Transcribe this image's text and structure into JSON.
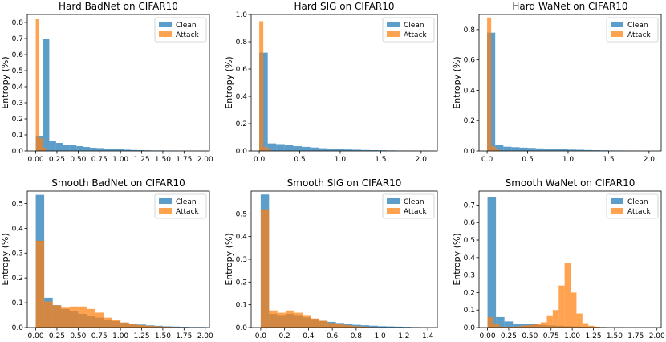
{
  "colors": {
    "clean": "#1f77b4",
    "attack": "#ff7f0e",
    "overlap": "#9a6a47"
  },
  "chart_data": [
    {
      "type": "histogram",
      "title": "Hard BadNet on CIFAR10",
      "xlabel": "",
      "ylabel": "Entropy (%)",
      "xlim": [
        -0.1,
        2.05
      ],
      "ylim": [
        0,
        0.85
      ],
      "xticks": [
        0,
        0.25,
        0.5,
        0.75,
        1.0,
        1.25,
        1.5,
        1.75,
        2.0
      ],
      "xtick_labels": [
        "0.00",
        "0.25",
        "0.50",
        "0.75",
        "1.00",
        "1.25",
        "1.50",
        "1.75",
        "2.00"
      ],
      "yticks": [
        0,
        0.1,
        0.2,
        0.3,
        0.4,
        0.5,
        0.6,
        0.7,
        0.8
      ],
      "ytick_labels": [
        "0.0",
        "0.1",
        "0.2",
        "0.3",
        "0.4",
        "0.5",
        "0.6",
        "0.7",
        "0.8"
      ],
      "legend": {
        "labels": [
          "Clean",
          "Attack"
        ],
        "position": "top-right"
      },
      "series": [
        {
          "name": "Clean",
          "bin_start": 0.0,
          "bin_width": 0.08,
          "values": [
            0.09,
            0.7,
            0.06,
            0.05,
            0.04,
            0.035,
            0.03,
            0.025,
            0.02,
            0.018,
            0.014,
            0.012,
            0.01,
            0.008,
            0.006,
            0.005,
            0.004,
            0.003,
            0.003,
            0.002,
            0.002,
            0.001,
            0.001,
            0.001,
            0.001
          ]
        },
        {
          "name": "Attack",
          "bin_start": 0.0,
          "bin_width": 0.04,
          "values": [
            0.82,
            0.08,
            0.02
          ]
        }
      ]
    },
    {
      "type": "histogram",
      "title": "Hard SIG on CIFAR10",
      "xlabel": "",
      "ylabel": "Entropy (%)",
      "xlim": [
        -0.1,
        2.2
      ],
      "ylim": [
        0,
        1.0
      ],
      "xticks": [
        0,
        0.5,
        1.0,
        1.5,
        2.0
      ],
      "xtick_labels": [
        "0.0",
        "0.5",
        "1.0",
        "1.5",
        "2.0"
      ],
      "yticks": [
        0,
        0.2,
        0.4,
        0.6,
        0.8,
        1.0
      ],
      "ytick_labels": [
        "0.0",
        "0.2",
        "0.4",
        "0.6",
        "0.8",
        "1.0"
      ],
      "legend": {
        "labels": [
          "Clean",
          "Attack"
        ],
        "position": "top-right"
      },
      "series": [
        {
          "name": "Clean",
          "bin_start": 0.0,
          "bin_width": 0.105,
          "values": [
            0.72,
            0.055,
            0.05,
            0.042,
            0.035,
            0.03,
            0.025,
            0.02,
            0.017,
            0.014,
            0.011,
            0.009,
            0.007,
            0.006,
            0.005,
            0.004,
            0.003,
            0.003,
            0.002,
            0.002
          ]
        },
        {
          "name": "Attack",
          "bin_start": 0.0,
          "bin_width": 0.05,
          "values": [
            0.95,
            0.03,
            0.01
          ]
        }
      ]
    },
    {
      "type": "histogram",
      "title": "Hard WaNet on CIFAR10",
      "xlabel": "",
      "ylabel": "Entropy (%)",
      "xlim": [
        -0.1,
        2.15
      ],
      "ylim": [
        0,
        0.9
      ],
      "xticks": [
        0,
        0.5,
        1.0,
        1.5,
        2.0
      ],
      "xtick_labels": [
        "0.0",
        "0.5",
        "1.0",
        "1.5",
        "2.0"
      ],
      "yticks": [
        0,
        0.2,
        0.4,
        0.6,
        0.8
      ],
      "ytick_labels": [
        "0.0",
        "0.2",
        "0.4",
        "0.6",
        "0.8"
      ],
      "legend": {
        "labels": [
          "Clean",
          "Attack"
        ],
        "position": "top-right"
      },
      "series": [
        {
          "name": "Clean",
          "bin_start": 0.0,
          "bin_width": 0.1,
          "values": [
            0.78,
            0.04,
            0.028,
            0.025,
            0.022,
            0.02,
            0.017,
            0.015,
            0.013,
            0.011,
            0.009,
            0.008,
            0.006,
            0.005,
            0.004,
            0.003,
            0.003,
            0.002,
            0.002,
            0.001
          ]
        },
        {
          "name": "Attack",
          "bin_start": 0.0,
          "bin_width": 0.05,
          "values": [
            0.88,
            0.03,
            0.01
          ]
        }
      ]
    },
    {
      "type": "histogram",
      "title": "Smooth BadNet on CIFAR10",
      "xlabel": "",
      "ylabel": "Entropy (%)",
      "xlim": [
        -0.1,
        2.05
      ],
      "ylim": [
        0,
        0.55
      ],
      "xticks": [
        0,
        0.25,
        0.5,
        0.75,
        1.0,
        1.25,
        1.5,
        1.75,
        2.0
      ],
      "xtick_labels": [
        "0.00",
        "0.25",
        "0.50",
        "0.75",
        "1.00",
        "1.25",
        "1.50",
        "1.75",
        "2.00"
      ],
      "yticks": [
        0,
        0.1,
        0.2,
        0.3,
        0.4,
        0.5
      ],
      "ytick_labels": [
        "0.0",
        "0.1",
        "0.2",
        "0.3",
        "0.4",
        "0.5"
      ],
      "legend": {
        "labels": [
          "Clean",
          "Attack"
        ],
        "position": "top-right"
      },
      "series": [
        {
          "name": "Clean",
          "bin_start": 0.0,
          "bin_width": 0.1,
          "values": [
            0.535,
            0.12,
            0.09,
            0.075,
            0.065,
            0.055,
            0.048,
            0.04,
            0.032,
            0.026,
            0.02,
            0.016,
            0.012,
            0.009,
            0.007,
            0.005,
            0.004,
            0.003,
            0.002,
            0.002
          ]
        },
        {
          "name": "Attack",
          "bin_start": 0.0,
          "bin_width": 0.1,
          "values": [
            0.35,
            0.105,
            0.09,
            0.08,
            0.085,
            0.085,
            0.075,
            0.06,
            0.04,
            0.03,
            0.02,
            0.015,
            0.01,
            0.007,
            0.005,
            0.003,
            0.002,
            0.001
          ]
        }
      ]
    },
    {
      "type": "histogram",
      "title": "Smooth SIG on CIFAR10",
      "xlabel": "",
      "ylabel": "Entropy (%)",
      "xlim": [
        -0.08,
        1.48
      ],
      "ylim": [
        0,
        0.6
      ],
      "xticks": [
        0,
        0.2,
        0.4,
        0.6,
        0.8,
        1.0,
        1.2,
        1.4
      ],
      "xtick_labels": [
        "0.0",
        "0.2",
        "0.4",
        "0.6",
        "0.8",
        "1.0",
        "1.2",
        "1.4"
      ],
      "yticks": [
        0,
        0.1,
        0.2,
        0.3,
        0.4,
        0.5
      ],
      "ytick_labels": [
        "0.0",
        "0.1",
        "0.2",
        "0.3",
        "0.4",
        "0.5"
      ],
      "legend": {
        "labels": [
          "Clean",
          "Attack"
        ],
        "position": "top-right"
      },
      "series": [
        {
          "name": "Clean",
          "bin_start": 0.0,
          "bin_width": 0.07,
          "values": [
            0.585,
            0.06,
            0.055,
            0.06,
            0.055,
            0.045,
            0.038,
            0.03,
            0.025,
            0.02,
            0.016,
            0.012,
            0.01,
            0.008,
            0.006,
            0.005,
            0.004,
            0.003,
            0.002,
            0.001
          ]
        },
        {
          "name": "Attack",
          "bin_start": 0.0,
          "bin_width": 0.07,
          "values": [
            0.52,
            0.075,
            0.065,
            0.075,
            0.065,
            0.055,
            0.04,
            0.03,
            0.02,
            0.014,
            0.01,
            0.006,
            0.004,
            0.002
          ]
        }
      ]
    },
    {
      "type": "histogram",
      "title": "Smooth WaNet on CIFAR10",
      "xlabel": "",
      "ylabel": "Entropy (%)",
      "xlim": [
        -0.1,
        2.05
      ],
      "ylim": [
        0,
        0.78
      ],
      "xticks": [
        0,
        0.25,
        0.5,
        0.75,
        1.0,
        1.25,
        1.5,
        1.75,
        2.0
      ],
      "xtick_labels": [
        "0.00",
        "0.25",
        "0.50",
        "0.75",
        "1.00",
        "1.25",
        "1.50",
        "1.75",
        "2.00"
      ],
      "yticks": [
        0,
        0.1,
        0.2,
        0.3,
        0.4,
        0.5,
        0.6,
        0.7
      ],
      "ytick_labels": [
        "0.0",
        "0.1",
        "0.2",
        "0.3",
        "0.4",
        "0.5",
        "0.6",
        "0.7"
      ],
      "legend": {
        "labels": [
          "Clean",
          "Attack"
        ],
        "position": "top-right"
      },
      "series": [
        {
          "name": "Clean",
          "bin_start": 0.0,
          "bin_width": 0.1,
          "values": [
            0.745,
            0.06,
            0.035,
            0.02,
            0.02,
            0.02,
            0.015,
            0.012,
            0.01,
            0.008,
            0.006,
            0.005,
            0.004,
            0.003,
            0.002,
            0.002,
            0.001,
            0.001,
            0.001,
            0.001
          ]
        },
        {
          "name": "Attack",
          "bin_start": 0.0,
          "bin_width": 0.07,
          "values": [
            0.06,
            0.02,
            0.005,
            0.004,
            0.005,
            0.008,
            0.012,
            0.015,
            0.02,
            0.03,
            0.07,
            0.1,
            0.24,
            0.37,
            0.2,
            0.08,
            0.025,
            0.01,
            0.005,
            0.002,
            0.001
          ]
        }
      ]
    }
  ]
}
